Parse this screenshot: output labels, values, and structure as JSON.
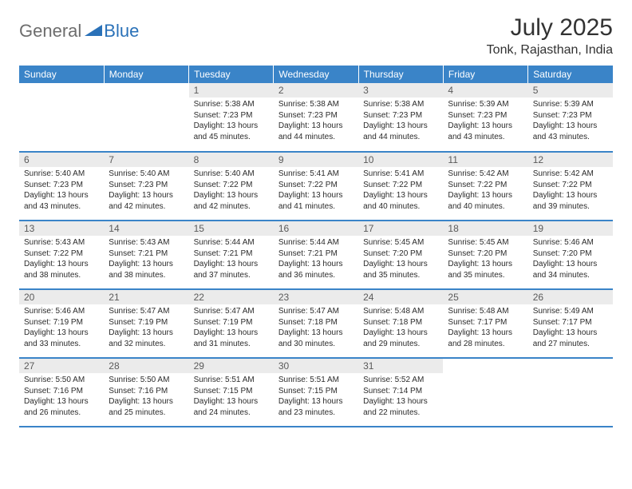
{
  "logo": {
    "general": "General",
    "blue": "Blue"
  },
  "title": "July 2025",
  "location": "Tonk, Rajasthan, India",
  "header_bg": "#3a84c8",
  "daynum_bg": "#ebebeb",
  "border_color": "#3a84c8",
  "day_headers": [
    "Sunday",
    "Monday",
    "Tuesday",
    "Wednesday",
    "Thursday",
    "Friday",
    "Saturday"
  ],
  "weeks": [
    [
      {
        "n": "",
        "sr": "",
        "ss": "",
        "dl": ""
      },
      {
        "n": "",
        "sr": "",
        "ss": "",
        "dl": ""
      },
      {
        "n": "1",
        "sr": "5:38 AM",
        "ss": "7:23 PM",
        "dl": "13 hours and 45 minutes."
      },
      {
        "n": "2",
        "sr": "5:38 AM",
        "ss": "7:23 PM",
        "dl": "13 hours and 44 minutes."
      },
      {
        "n": "3",
        "sr": "5:38 AM",
        "ss": "7:23 PM",
        "dl": "13 hours and 44 minutes."
      },
      {
        "n": "4",
        "sr": "5:39 AM",
        "ss": "7:23 PM",
        "dl": "13 hours and 43 minutes."
      },
      {
        "n": "5",
        "sr": "5:39 AM",
        "ss": "7:23 PM",
        "dl": "13 hours and 43 minutes."
      }
    ],
    [
      {
        "n": "6",
        "sr": "5:40 AM",
        "ss": "7:23 PM",
        "dl": "13 hours and 43 minutes."
      },
      {
        "n": "7",
        "sr": "5:40 AM",
        "ss": "7:23 PM",
        "dl": "13 hours and 42 minutes."
      },
      {
        "n": "8",
        "sr": "5:40 AM",
        "ss": "7:22 PM",
        "dl": "13 hours and 42 minutes."
      },
      {
        "n": "9",
        "sr": "5:41 AM",
        "ss": "7:22 PM",
        "dl": "13 hours and 41 minutes."
      },
      {
        "n": "10",
        "sr": "5:41 AM",
        "ss": "7:22 PM",
        "dl": "13 hours and 40 minutes."
      },
      {
        "n": "11",
        "sr": "5:42 AM",
        "ss": "7:22 PM",
        "dl": "13 hours and 40 minutes."
      },
      {
        "n": "12",
        "sr": "5:42 AM",
        "ss": "7:22 PM",
        "dl": "13 hours and 39 minutes."
      }
    ],
    [
      {
        "n": "13",
        "sr": "5:43 AM",
        "ss": "7:22 PM",
        "dl": "13 hours and 38 minutes."
      },
      {
        "n": "14",
        "sr": "5:43 AM",
        "ss": "7:21 PM",
        "dl": "13 hours and 38 minutes."
      },
      {
        "n": "15",
        "sr": "5:44 AM",
        "ss": "7:21 PM",
        "dl": "13 hours and 37 minutes."
      },
      {
        "n": "16",
        "sr": "5:44 AM",
        "ss": "7:21 PM",
        "dl": "13 hours and 36 minutes."
      },
      {
        "n": "17",
        "sr": "5:45 AM",
        "ss": "7:20 PM",
        "dl": "13 hours and 35 minutes."
      },
      {
        "n": "18",
        "sr": "5:45 AM",
        "ss": "7:20 PM",
        "dl": "13 hours and 35 minutes."
      },
      {
        "n": "19",
        "sr": "5:46 AM",
        "ss": "7:20 PM",
        "dl": "13 hours and 34 minutes."
      }
    ],
    [
      {
        "n": "20",
        "sr": "5:46 AM",
        "ss": "7:19 PM",
        "dl": "13 hours and 33 minutes."
      },
      {
        "n": "21",
        "sr": "5:47 AM",
        "ss": "7:19 PM",
        "dl": "13 hours and 32 minutes."
      },
      {
        "n": "22",
        "sr": "5:47 AM",
        "ss": "7:19 PM",
        "dl": "13 hours and 31 minutes."
      },
      {
        "n": "23",
        "sr": "5:47 AM",
        "ss": "7:18 PM",
        "dl": "13 hours and 30 minutes."
      },
      {
        "n": "24",
        "sr": "5:48 AM",
        "ss": "7:18 PM",
        "dl": "13 hours and 29 minutes."
      },
      {
        "n": "25",
        "sr": "5:48 AM",
        "ss": "7:17 PM",
        "dl": "13 hours and 28 minutes."
      },
      {
        "n": "26",
        "sr": "5:49 AM",
        "ss": "7:17 PM",
        "dl": "13 hours and 27 minutes."
      }
    ],
    [
      {
        "n": "27",
        "sr": "5:50 AM",
        "ss": "7:16 PM",
        "dl": "13 hours and 26 minutes."
      },
      {
        "n": "28",
        "sr": "5:50 AM",
        "ss": "7:16 PM",
        "dl": "13 hours and 25 minutes."
      },
      {
        "n": "29",
        "sr": "5:51 AM",
        "ss": "7:15 PM",
        "dl": "13 hours and 24 minutes."
      },
      {
        "n": "30",
        "sr": "5:51 AM",
        "ss": "7:15 PM",
        "dl": "13 hours and 23 minutes."
      },
      {
        "n": "31",
        "sr": "5:52 AM",
        "ss": "7:14 PM",
        "dl": "13 hours and 22 minutes."
      },
      {
        "n": "",
        "sr": "",
        "ss": "",
        "dl": ""
      },
      {
        "n": "",
        "sr": "",
        "ss": "",
        "dl": ""
      }
    ]
  ],
  "labels": {
    "sunrise": "Sunrise: ",
    "sunset": "Sunset: ",
    "daylight": "Daylight: "
  }
}
